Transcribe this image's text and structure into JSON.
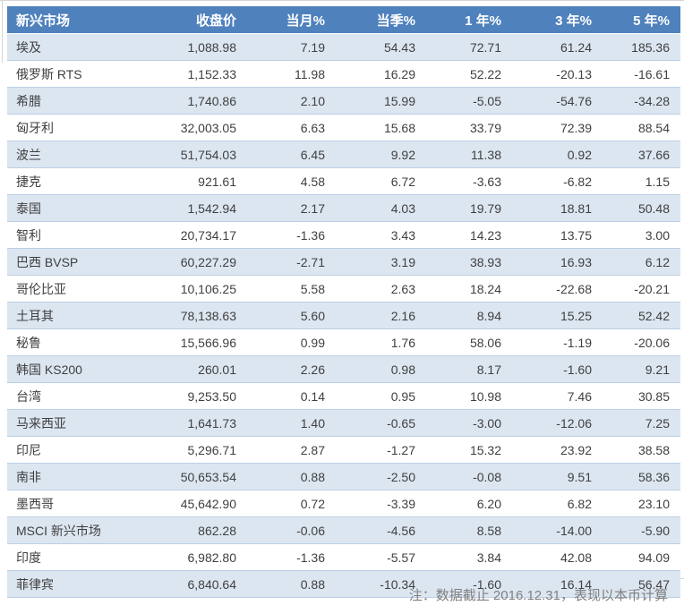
{
  "chart_data": {
    "type": "table",
    "title": "",
    "columns": [
      "新兴市场",
      "收盘价",
      "当月%",
      "当季%",
      "1 年%",
      "3 年%",
      "5 年%"
    ],
    "rows": [
      [
        "埃及",
        "1,088.98",
        "7.19",
        "54.43",
        "72.71",
        "61.24",
        "185.36"
      ],
      [
        "俄罗斯 RTS",
        "1,152.33",
        "11.98",
        "16.29",
        "52.22",
        "-20.13",
        "-16.61"
      ],
      [
        "希腊",
        "1,740.86",
        "2.10",
        "15.99",
        "-5.05",
        "-54.76",
        "-34.28"
      ],
      [
        "匈牙利",
        "32,003.05",
        "6.63",
        "15.68",
        "33.79",
        "72.39",
        "88.54"
      ],
      [
        "波兰",
        "51,754.03",
        "6.45",
        "9.92",
        "11.38",
        "0.92",
        "37.66"
      ],
      [
        "捷克",
        "921.61",
        "4.58",
        "6.72",
        "-3.63",
        "-6.82",
        "1.15"
      ],
      [
        "泰国",
        "1,542.94",
        "2.17",
        "4.03",
        "19.79",
        "18.81",
        "50.48"
      ],
      [
        "智利",
        "20,734.17",
        "-1.36",
        "3.43",
        "14.23",
        "13.75",
        "3.00"
      ],
      [
        "巴西 BVSP",
        "60,227.29",
        "-2.71",
        "3.19",
        "38.93",
        "16.93",
        "6.12"
      ],
      [
        "哥伦比亚",
        "10,106.25",
        "5.58",
        "2.63",
        "18.24",
        "-22.68",
        "-20.21"
      ],
      [
        "土耳其",
        "78,138.63",
        "5.60",
        "2.16",
        "8.94",
        "15.25",
        "52.42"
      ],
      [
        "秘鲁",
        "15,566.96",
        "0.99",
        "1.76",
        "58.06",
        "-1.19",
        "-20.06"
      ],
      [
        "韩国 KS200",
        "260.01",
        "2.26",
        "0.98",
        "8.17",
        "-1.60",
        "9.21"
      ],
      [
        "台湾",
        "9,253.50",
        "0.14",
        "0.95",
        "10.98",
        "7.46",
        "30.85"
      ],
      [
        "马来西亚",
        "1,641.73",
        "1.40",
        "-0.65",
        "-3.00",
        "-12.06",
        "7.25"
      ],
      [
        "印尼",
        "5,296.71",
        "2.87",
        "-1.27",
        "15.32",
        "23.92",
        "38.58"
      ],
      [
        "南非",
        "50,653.54",
        "0.88",
        "-2.50",
        "-0.08",
        "9.51",
        "58.36"
      ],
      [
        "墨西哥",
        "45,642.90",
        "0.72",
        "-3.39",
        "6.20",
        "6.82",
        "23.10"
      ],
      [
        "MSCI 新兴市场",
        "862.28",
        "-0.06",
        "-4.56",
        "8.58",
        "-14.00",
        "-5.90"
      ],
      [
        "印度",
        "6,982.80",
        "-1.36",
        "-5.57",
        "3.84",
        "42.08",
        "94.09"
      ],
      [
        "菲律宾",
        "6,840.64",
        "0.88",
        "-10.34",
        "-1.60",
        "16.14",
        "56.47"
      ]
    ],
    "note": "注：数据截止 2016.12.31，表现以本币计算",
    "layout_hints": {
      "banded_rows": "odd rows shaded light blue",
      "alignment": "first column left, numeric columns right",
      "grid": "horizontal row separators only, no vertical lines"
    }
  },
  "colors": {
    "header_bg": "#4F81BD",
    "header_text": "#FFFFFF",
    "band_bg": "#DCE6F1",
    "row_border": "#BDCFE4",
    "text_color": "#3F3F3F",
    "footnote": "#808080",
    "artifact_line": "#D5D5D5"
  }
}
